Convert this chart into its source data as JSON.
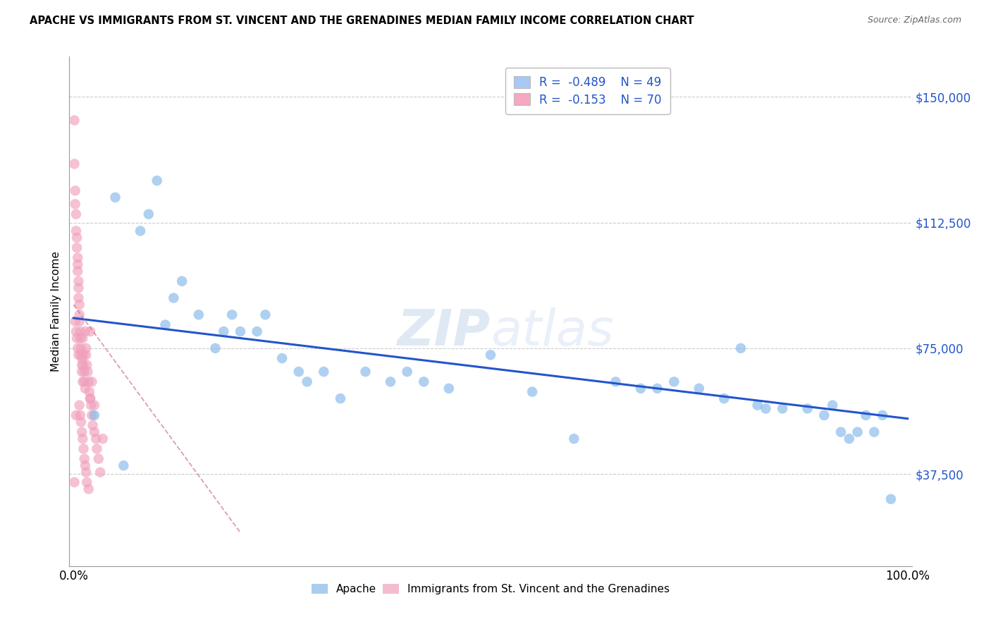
{
  "title": "APACHE VS IMMIGRANTS FROM ST. VINCENT AND THE GRENADINES MEDIAN FAMILY INCOME CORRELATION CHART",
  "source": "Source: ZipAtlas.com",
  "ylabel": "Median Family Income",
  "ytick_labels": [
    "$37,500",
    "$75,000",
    "$112,500",
    "$150,000"
  ],
  "ytick_values": [
    37500,
    75000,
    112500,
    150000
  ],
  "ymin": 10000,
  "ymax": 162000,
  "xmin": -0.005,
  "xmax": 1.005,
  "legend1_label_R": "R = ",
  "legend1_label_Rval": "-0.489",
  "legend1_label_N": "   N = ",
  "legend1_label_Nval": "49",
  "legend2_label_R": "R = ",
  "legend2_label_Rval": "-0.153",
  "legend2_label_N": "   N = ",
  "legend2_label_Nval": "70",
  "legend1_color": "#a8c8f5",
  "legend2_color": "#f5a8c0",
  "watermark": "ZIPatlas",
  "blue_scatter_x": [
    0.025,
    0.05,
    0.06,
    0.08,
    0.09,
    0.1,
    0.11,
    0.12,
    0.13,
    0.15,
    0.17,
    0.18,
    0.19,
    0.2,
    0.22,
    0.23,
    0.25,
    0.27,
    0.28,
    0.3,
    0.32,
    0.35,
    0.38,
    0.4,
    0.42,
    0.45,
    0.5,
    0.55,
    0.6,
    0.65,
    0.68,
    0.7,
    0.72,
    0.75,
    0.78,
    0.8,
    0.82,
    0.83,
    0.85,
    0.88,
    0.9,
    0.91,
    0.92,
    0.93,
    0.94,
    0.95,
    0.96,
    0.97,
    0.98
  ],
  "blue_scatter_y": [
    55000,
    120000,
    40000,
    110000,
    115000,
    125000,
    82000,
    90000,
    95000,
    85000,
    75000,
    80000,
    85000,
    80000,
    80000,
    85000,
    72000,
    68000,
    65000,
    68000,
    60000,
    68000,
    65000,
    68000,
    65000,
    63000,
    73000,
    62000,
    48000,
    65000,
    63000,
    63000,
    65000,
    63000,
    60000,
    75000,
    58000,
    57000,
    57000,
    57000,
    55000,
    58000,
    50000,
    48000,
    50000,
    55000,
    50000,
    55000,
    30000
  ],
  "pink_scatter_x": [
    0.001,
    0.001,
    0.002,
    0.002,
    0.003,
    0.003,
    0.004,
    0.004,
    0.005,
    0.005,
    0.005,
    0.006,
    0.006,
    0.006,
    0.007,
    0.007,
    0.007,
    0.008,
    0.008,
    0.009,
    0.009,
    0.01,
    0.01,
    0.01,
    0.011,
    0.011,
    0.012,
    0.012,
    0.013,
    0.013,
    0.014,
    0.014,
    0.015,
    0.015,
    0.016,
    0.017,
    0.018,
    0.019,
    0.02,
    0.02,
    0.021,
    0.022,
    0.023,
    0.025,
    0.027,
    0.028,
    0.03,
    0.032,
    0.002,
    0.003,
    0.004,
    0.005,
    0.006,
    0.007,
    0.008,
    0.009,
    0.01,
    0.011,
    0.012,
    0.013,
    0.014,
    0.015,
    0.016,
    0.018,
    0.02,
    0.022,
    0.025,
    0.001,
    0.035,
    0.003
  ],
  "pink_scatter_y": [
    143000,
    130000,
    122000,
    118000,
    115000,
    110000,
    108000,
    105000,
    102000,
    100000,
    98000,
    95000,
    93000,
    90000,
    88000,
    85000,
    83000,
    80000,
    78000,
    75000,
    73000,
    72000,
    70000,
    68000,
    65000,
    78000,
    73000,
    70000,
    68000,
    65000,
    63000,
    80000,
    75000,
    73000,
    70000,
    68000,
    65000,
    62000,
    60000,
    80000,
    58000,
    55000,
    52000,
    50000,
    48000,
    45000,
    42000,
    38000,
    83000,
    80000,
    78000,
    75000,
    73000,
    58000,
    55000,
    53000,
    50000,
    48000,
    45000,
    42000,
    40000,
    38000,
    35000,
    33000,
    60000,
    65000,
    58000,
    35000,
    48000,
    55000
  ],
  "blue_line_x": [
    0.0,
    1.0
  ],
  "blue_line_y": [
    84000,
    54000
  ],
  "pink_line_x": [
    0.0,
    0.2
  ],
  "pink_line_y": [
    88000,
    20000
  ],
  "blue_dot_color": "#85b8e8",
  "pink_dot_color": "#f0a0bc",
  "blue_line_color": "#2255cc",
  "pink_line_color": "#cc6688",
  "dot_size": 110,
  "dot_alpha": 0.65
}
